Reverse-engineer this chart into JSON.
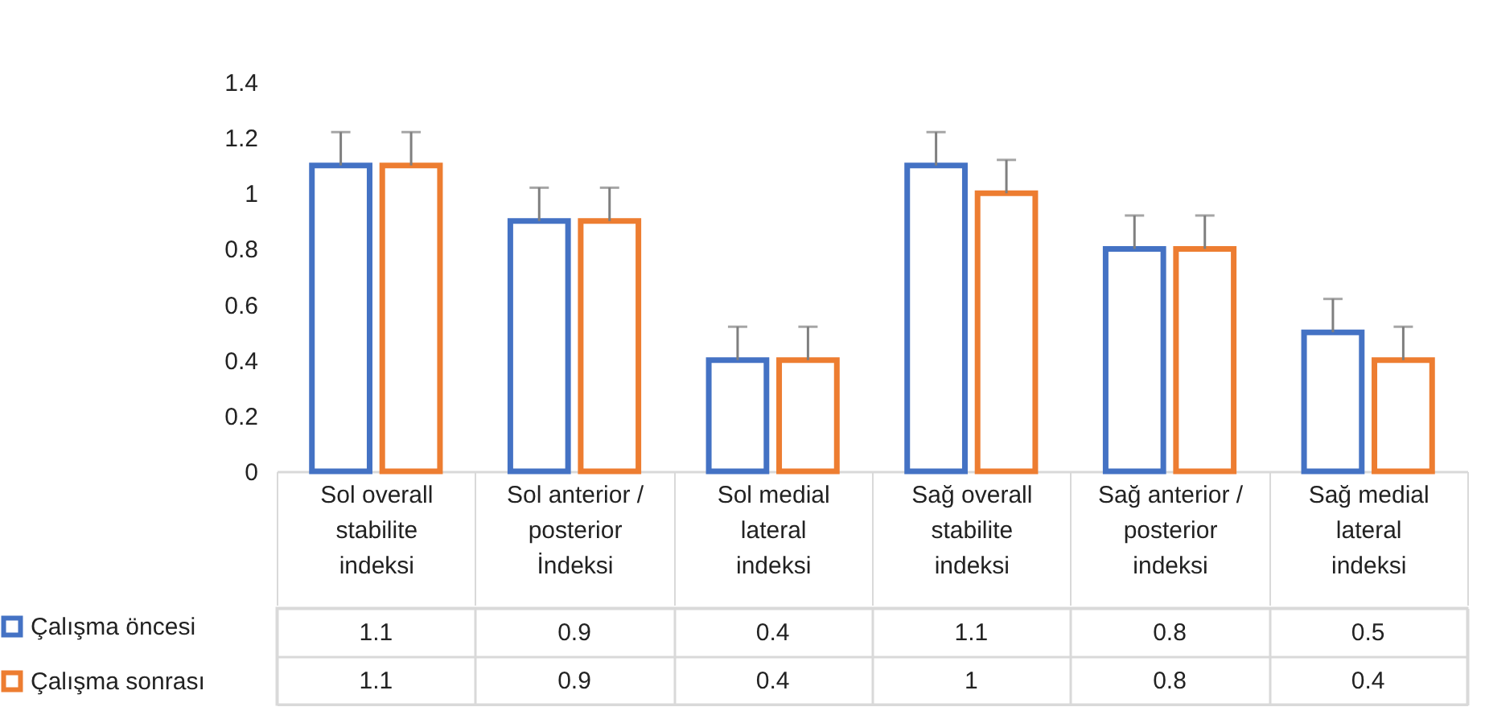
{
  "chart_data": {
    "type": "bar",
    "categories": [
      "Sol overall stabilite indeksi",
      "Sol anterior / posterior İndeksi",
      "Sol medial lateral indeksi",
      "Sağ overall stabilite indeksi",
      "Sağ anterior / posterior indeksi",
      "Sağ medial lateral indeksi"
    ],
    "series": [
      {
        "name": "Çalışma öncesi",
        "color": "#4472c4",
        "values": [
          1.1,
          0.9,
          0.4,
          1.1,
          0.8,
          0.5
        ],
        "errors": [
          [
            1.1,
            1.22
          ],
          [
            0.9,
            1.02
          ],
          [
            0.4,
            0.52
          ],
          [
            1.1,
            1.22
          ],
          [
            0.8,
            0.92
          ],
          [
            0.5,
            0.62
          ]
        ]
      },
      {
        "name": "Çalışma sonrası",
        "color": "#ed7d31",
        "values": [
          1.1,
          0.9,
          0.4,
          1,
          0.8,
          0.4
        ],
        "errors": [
          [
            1.1,
            1.22
          ],
          [
            0.9,
            1.02
          ],
          [
            0.4,
            0.52
          ],
          [
            1,
            1.12
          ],
          [
            0.8,
            0.92
          ],
          [
            0.4,
            0.52
          ]
        ]
      }
    ],
    "ylim": [
      0,
      1.4
    ],
    "yticks": [
      0,
      0.2,
      0.4,
      0.6,
      0.8,
      1,
      1.2,
      1.4
    ],
    "data_labels": true,
    "legend": "bottom left"
  }
}
